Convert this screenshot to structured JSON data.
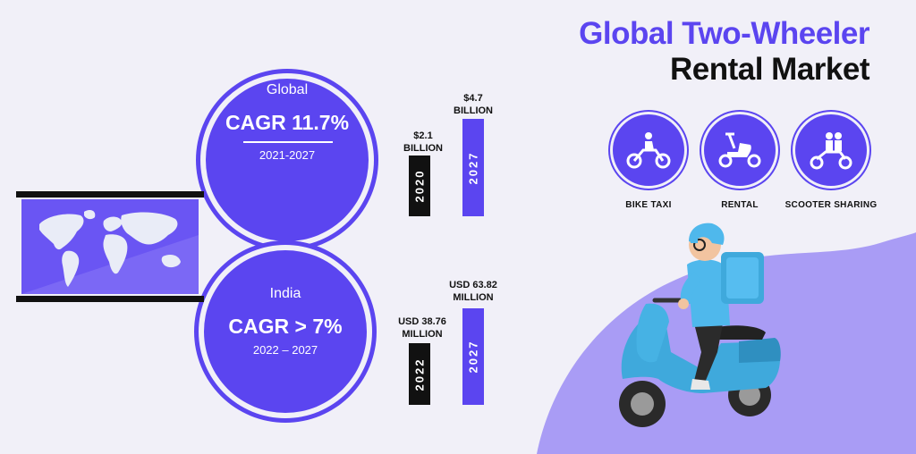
{
  "title": {
    "line1": "Global Two-Wheeler",
    "line2": "Rental Market"
  },
  "global": {
    "region": "Global",
    "cagr": "CAGR  11.7%",
    "period": "2021-2027"
  },
  "india": {
    "region": "India",
    "cagr": "CAGR > 7%",
    "period": "2022 – 2027"
  },
  "global_bars": [
    {
      "year": "2020",
      "label_line1": "$2.1",
      "label_line2": "BILLION",
      "color": "#111111"
    },
    {
      "year": "2027",
      "label_line1": "$4.7",
      "label_line2": "BILLION",
      "color": "#5b45f0"
    }
  ],
  "india_bars": [
    {
      "year": "2022",
      "label_line1": "USD 38.76",
      "label_line2": "MILLION",
      "color": "#111111"
    },
    {
      "year": "2027",
      "label_line1": "USD 63.82",
      "label_line2": "MILLION",
      "color": "#5b45f0"
    }
  ],
  "services": [
    {
      "label": "BIKE TAXI",
      "icon": "bike-taxi-icon"
    },
    {
      "label": "RENTAL",
      "icon": "scooter-icon"
    },
    {
      "label": "SCOOTER SHARING",
      "icon": "scooter-sharing-icon"
    }
  ],
  "colors": {
    "accent": "#5b45f0",
    "background": "#f1f0f8",
    "dark": "#111111",
    "blob": "#a99cf5",
    "scooter": "#3fa9dc"
  }
}
